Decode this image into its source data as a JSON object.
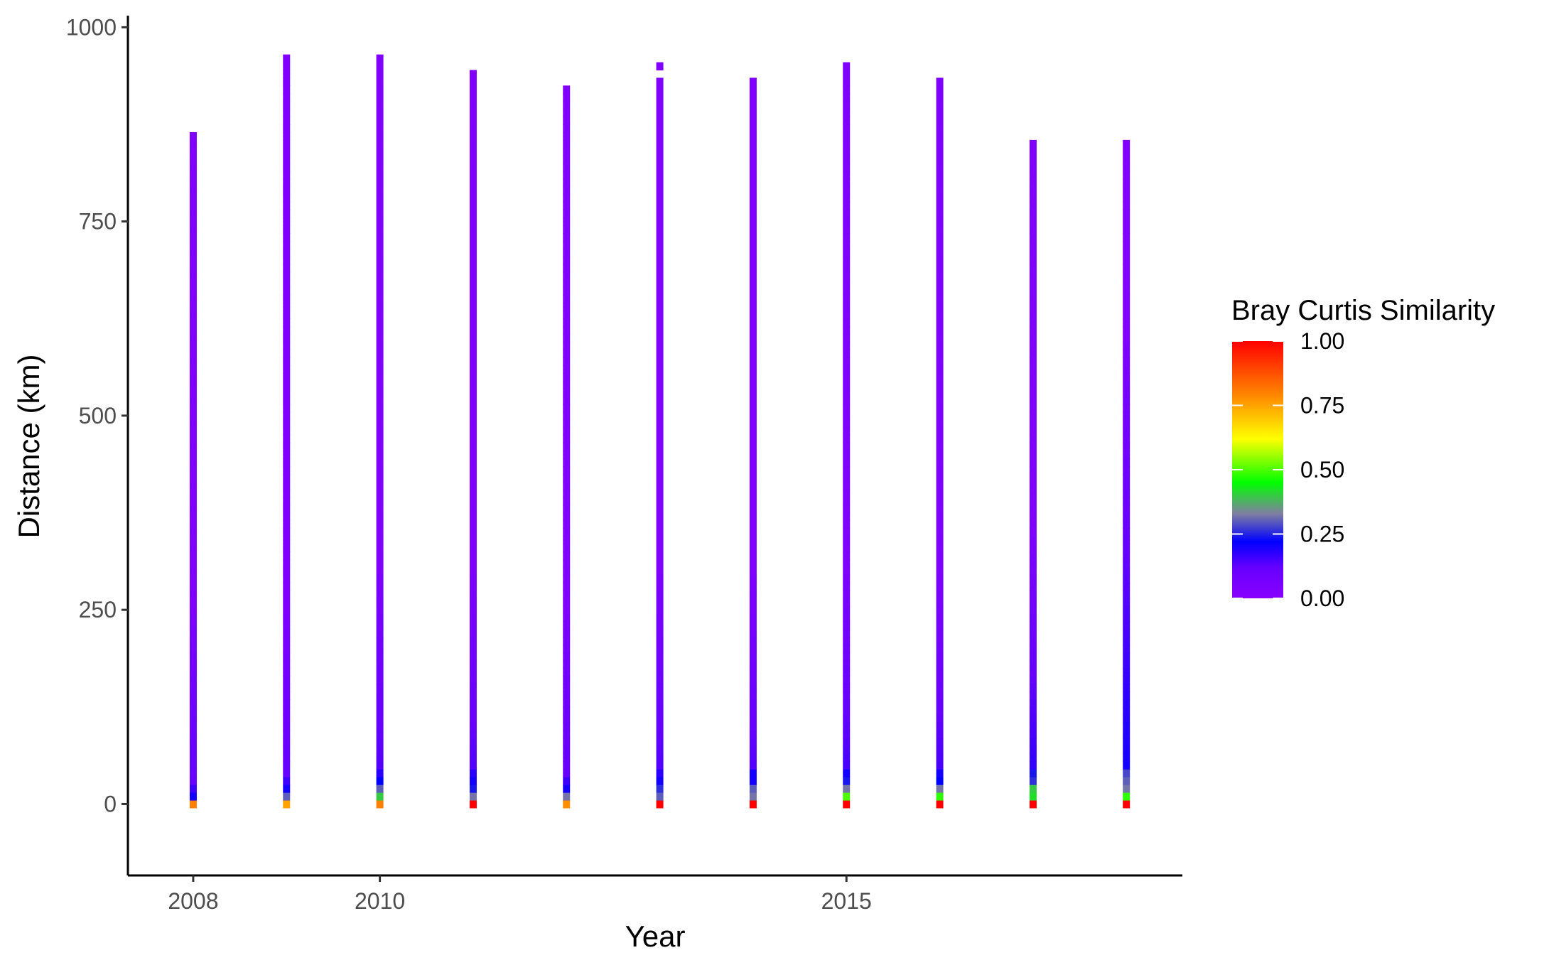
{
  "chart_data": {
    "type": "heatmap",
    "title": "",
    "xlabel": "Year",
    "ylabel": "Distance (km)",
    "xlim": [
      2007.3,
      2018.6
    ],
    "ylim": [
      -92,
      1015
    ],
    "x_ticks": [
      2008,
      2010,
      2015
    ],
    "x_tick_labels": [
      "2008",
      "2010",
      "2015"
    ],
    "y_ticks": [
      0,
      250,
      500,
      750,
      1000
    ],
    "y_tick_labels": [
      "0",
      "250",
      "500",
      "750",
      "1000"
    ],
    "grid": false,
    "legend": {
      "title": "Bray Curtis Similarity",
      "position": "right",
      "breaks": [
        0.0,
        0.25,
        0.5,
        0.75,
        1.0
      ],
      "labels": [
        "0.00",
        "0.25",
        "0.50",
        "0.75",
        "1.00"
      ],
      "colors": [
        "#8800ff",
        "#6600ff",
        "#0000ff",
        "#8080a0",
        "#00ff00",
        "#ffff00",
        "#ff8000",
        "#ff0000"
      ],
      "color_stops": [
        0.0,
        0.12,
        0.22,
        0.33,
        0.45,
        0.62,
        0.8,
        1.0
      ]
    },
    "bin_height_km": 10,
    "series": [
      {
        "year": 2008,
        "max_km": 865,
        "gaps": [],
        "low": [
          0.8,
          0.2,
          0.16,
          0.12,
          0.1
        ],
        "ramp_to_km": 250,
        "ramp_start": 0.12
      },
      {
        "year": 2009,
        "max_km": 965,
        "gaps": [],
        "low": [
          0.75,
          0.3,
          0.2,
          0.16,
          0.12
        ],
        "ramp_to_km": 250,
        "ramp_start": 0.12
      },
      {
        "year": 2010,
        "max_km": 965,
        "gaps": [],
        "low": [
          0.8,
          0.4,
          0.3,
          0.22,
          0.18
        ],
        "ramp_to_km": 300,
        "ramp_start": 0.14
      },
      {
        "year": 2011,
        "max_km": 945,
        "gaps": [],
        "low": [
          1.0,
          0.32,
          0.24,
          0.2,
          0.18
        ],
        "ramp_to_km": 300,
        "ramp_start": 0.14
      },
      {
        "year": 2012,
        "max_km": 925,
        "gaps": [],
        "low": [
          0.78,
          0.32,
          0.2,
          0.16,
          0.12
        ],
        "ramp_to_km": 250,
        "ramp_start": 0.12
      },
      {
        "year": 2013,
        "max_km": 955,
        "gaps": [
          [
            935,
            945
          ]
        ],
        "low": [
          1.0,
          0.3,
          0.26,
          0.2,
          0.18
        ],
        "ramp_to_km": 300,
        "ramp_start": 0.14
      },
      {
        "year": 2014,
        "max_km": 935,
        "gaps": [],
        "low": [
          1.0,
          0.32,
          0.3,
          0.2,
          0.2
        ],
        "ramp_to_km": 300,
        "ramp_start": 0.14
      },
      {
        "year": 2015,
        "max_km": 955,
        "gaps": [],
        "low": [
          1.0,
          0.5,
          0.32,
          0.24,
          0.2
        ],
        "ramp_to_km": 300,
        "ramp_start": 0.15
      },
      {
        "year": 2016,
        "max_km": 935,
        "gaps": [],
        "low": [
          1.0,
          0.48,
          0.32,
          0.22,
          0.2
        ],
        "ramp_to_km": 300,
        "ramp_start": 0.15
      },
      {
        "year": 2017,
        "max_km": 855,
        "gaps": [],
        "low": [
          1.0,
          0.42,
          0.4,
          0.26,
          0.24
        ],
        "ramp_to_km": 350,
        "ramp_start": 0.17
      },
      {
        "year": 2018,
        "max_km": 855,
        "gaps": [],
        "low": [
          1.0,
          0.48,
          0.32,
          0.3,
          0.28
        ],
        "ramp_to_km": 600,
        "ramp_start": 0.2
      }
    ]
  }
}
